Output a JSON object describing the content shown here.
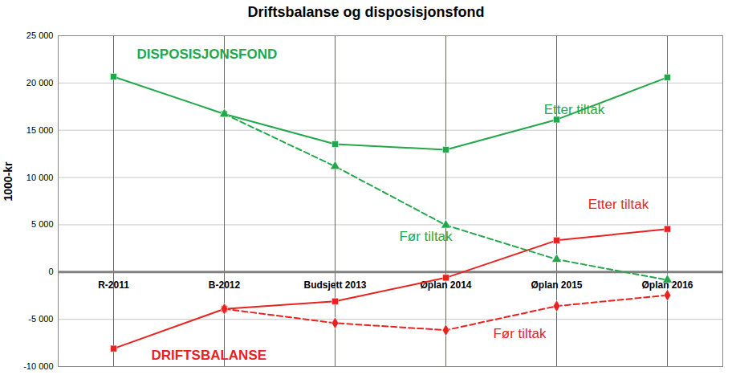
{
  "chart_data": {
    "type": "line",
    "title": "Driftsbalanse og disposisjonsfond",
    "y_label": "1000-kr",
    "categories": [
      "R-2011",
      "B-2012",
      "Budsjett 2013",
      "Øplan 2014",
      "Øplan 2015",
      "Øplan 2016"
    ],
    "ylim": [
      -10000,
      25000
    ],
    "yticks": [
      {
        "value": -10000,
        "label": "-10 000"
      },
      {
        "value": -5000,
        "label": "-5 000"
      },
      0,
      {
        "value": 5000,
        "label": "5 000"
      },
      {
        "value": 10000,
        "label": "10 000"
      },
      {
        "value": 15000,
        "label": "15 000"
      },
      {
        "value": 20000,
        "label": "20 000"
      },
      {
        "value": 25000,
        "label": "25 000"
      }
    ],
    "grid": true,
    "series": [
      {
        "name": "Etter tiltak",
        "color": "#22a84a",
        "marker": "square",
        "line_style": "solid",
        "values": [
          20670,
          16720,
          13530,
          12940,
          16130,
          20590
        ],
        "label": {
          "x": "Øplan 2015",
          "y": 17200
        }
      },
      {
        "name": "Før tiltak",
        "color": "#22a84a",
        "marker": "triangle",
        "line_style": "dashed",
        "values": [
          null,
          16720,
          11180,
          4960,
          1340,
          -840
        ],
        "label": {
          "x": "Øplan 2014",
          "y": 3800
        }
      },
      {
        "name": "Etter tiltak",
        "color": "#e8231f",
        "marker": "square",
        "line_style": "solid",
        "values": [
          -8100,
          -3900,
          -3100,
          -600,
          3350,
          4550
        ],
        "label": {
          "x": "Øplan 2015",
          "y": 7150
        }
      },
      {
        "name": "Før tiltak",
        "color": "#e8231f",
        "marker": "diamond",
        "line_style": "dashed",
        "values": [
          null,
          -3900,
          -5400,
          -6150,
          -3600,
          -2450
        ],
        "label": {
          "x": "Øplan 2015",
          "y": -6550
        }
      }
    ],
    "annotations": [
      {
        "text": "DISPOSISJONSFOND",
        "x": "R-2011",
        "y": 23000,
        "color": "#22a84a"
      },
      {
        "text": "DRIFTSBALANSE",
        "x": "R-2011",
        "y": -8800,
        "color": "#e8231f"
      }
    ]
  }
}
